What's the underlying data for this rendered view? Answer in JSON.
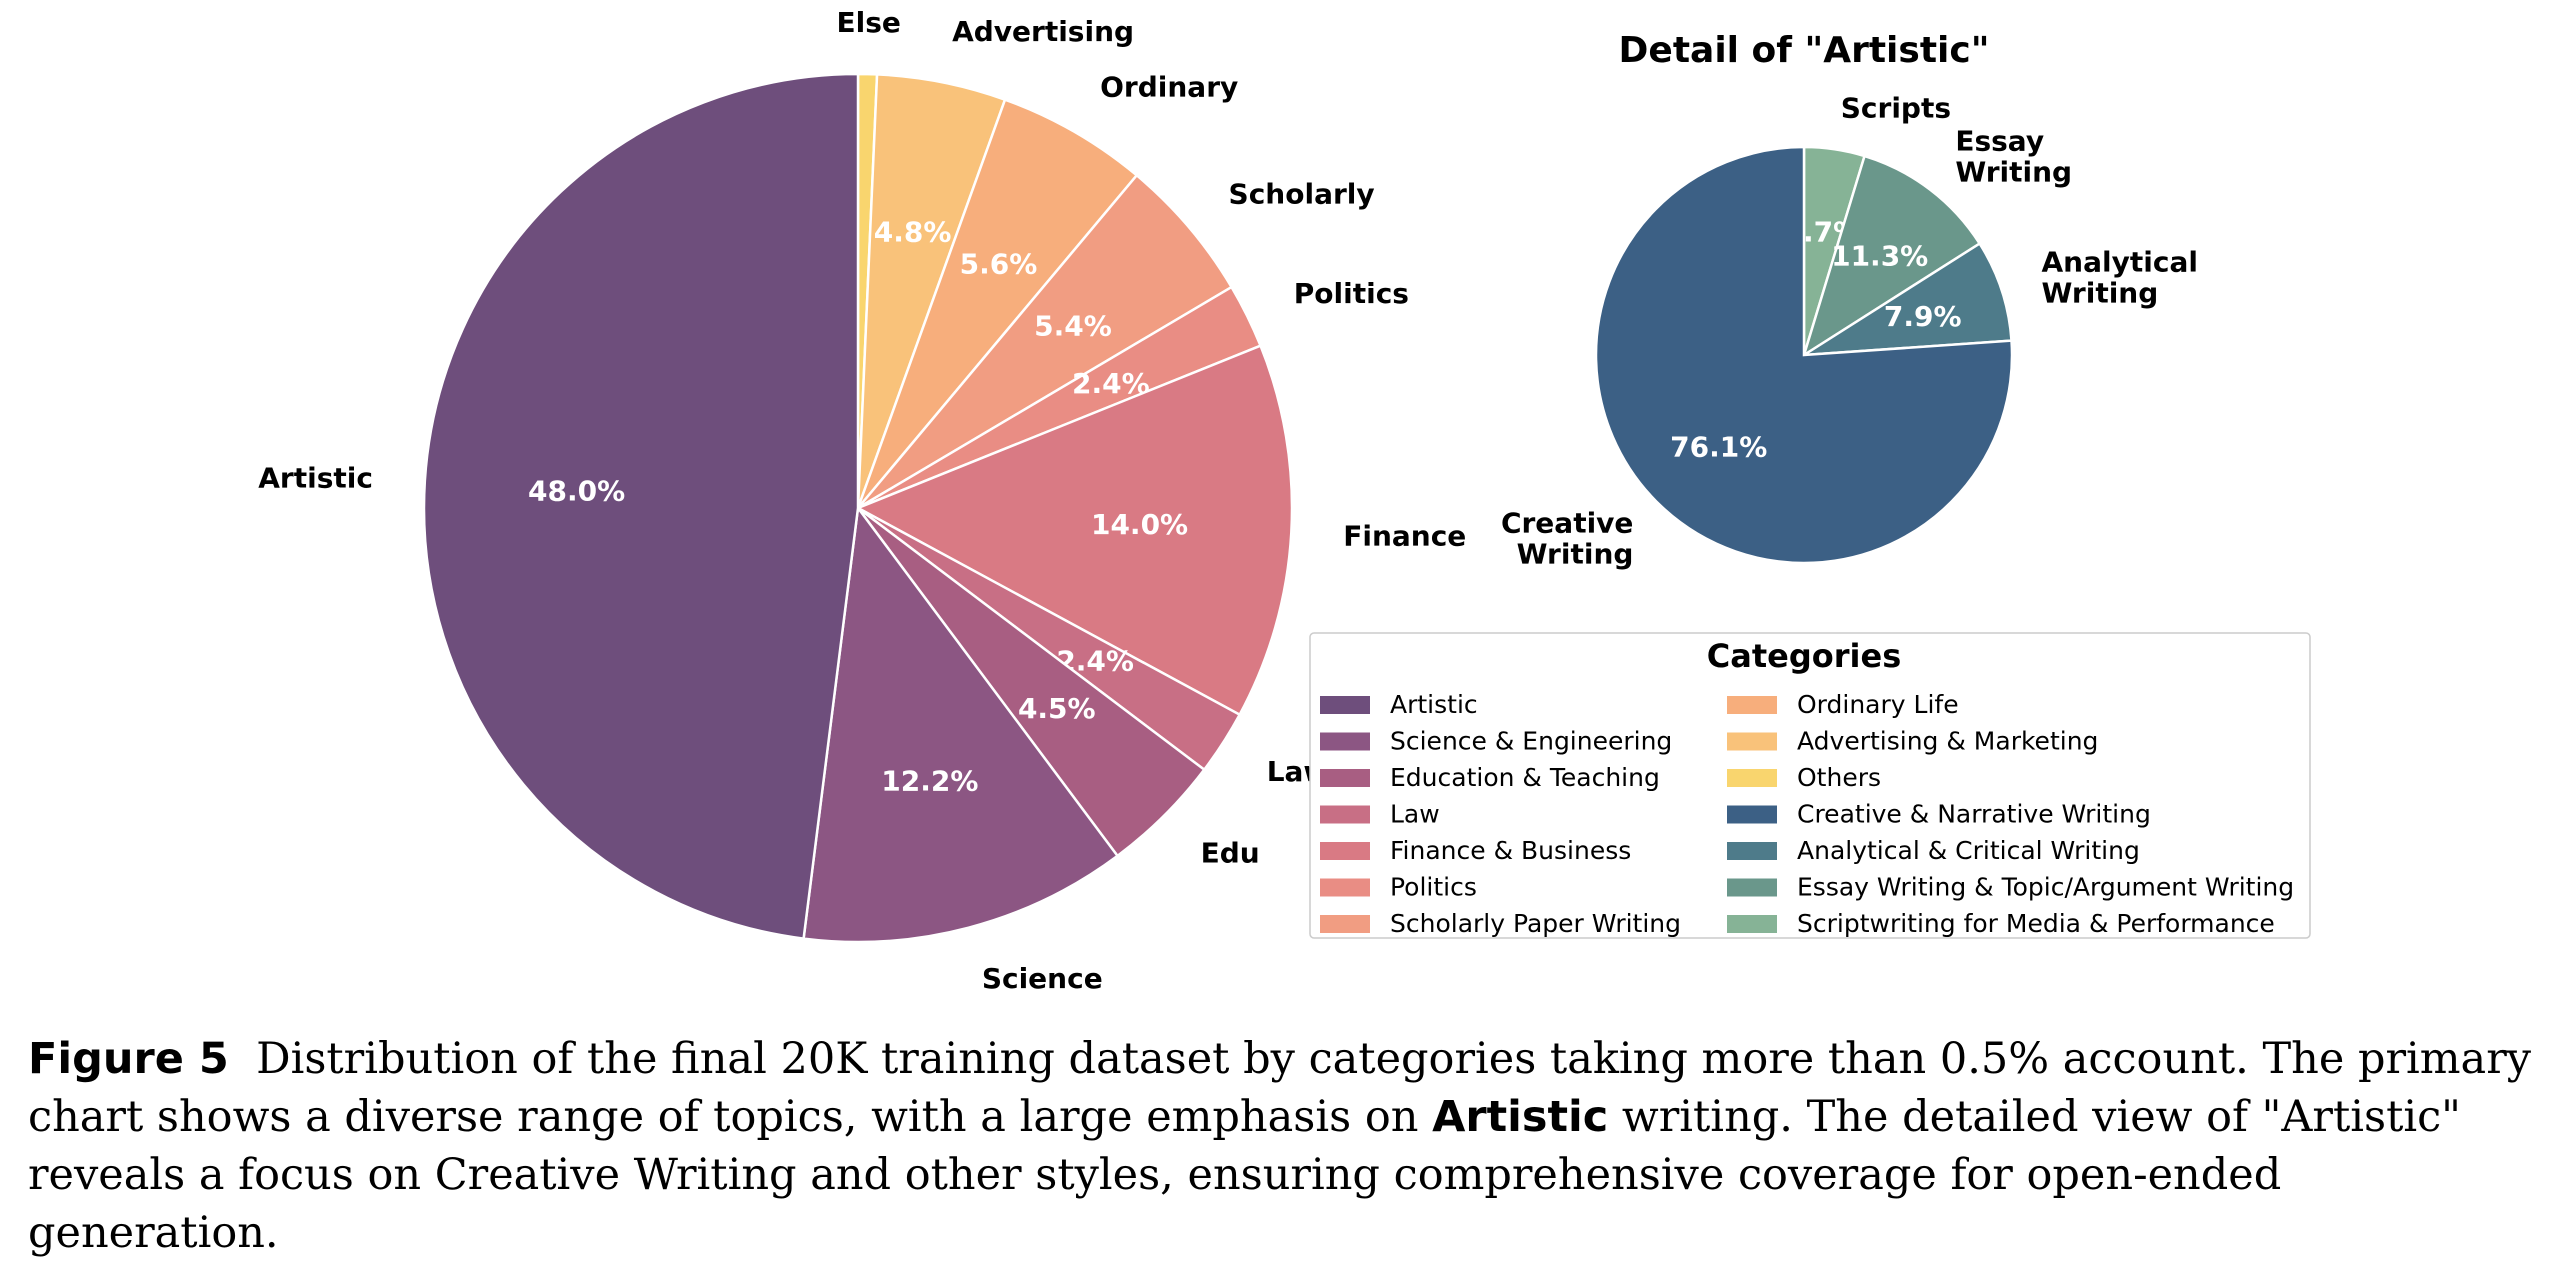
{
  "chart_data": [
    {
      "type": "pie",
      "title": "",
      "start_angle_deg": 90,
      "direction": "clockwise",
      "slices": [
        {
          "label": "Else",
          "value": 0.7,
          "pct_label": "",
          "color": "#F9D56E"
        },
        {
          "label": "Advertising",
          "value": 4.8,
          "pct_label": "4.8%",
          "color": "#F9C27A"
        },
        {
          "label": "Ordinary",
          "value": 5.6,
          "pct_label": "5.6%",
          "color": "#F7AE7C"
        },
        {
          "label": "Scholarly",
          "value": 5.4,
          "pct_label": "5.4%",
          "color": "#F19D82"
        },
        {
          "label": "Politics",
          "value": 2.4,
          "pct_label": "2.4%",
          "color": "#E98D84"
        },
        {
          "label": "Finance",
          "value": 14.0,
          "pct_label": "14.0%",
          "color": "#D97A84"
        },
        {
          "label": "Law",
          "value": 2.4,
          "pct_label": "2.4%",
          "color": "#C86F85"
        },
        {
          "label": "Edu",
          "value": 4.5,
          "pct_label": "4.5%",
          "color": "#A85E82"
        },
        {
          "label": "Science",
          "value": 12.2,
          "pct_label": "12.2%",
          "color": "#8C5683"
        },
        {
          "label": "Artistic",
          "value": 48.0,
          "pct_label": "48.0%",
          "color": "#6E4E7C"
        }
      ]
    },
    {
      "type": "pie",
      "title": "Detail of \"Artistic\"",
      "start_angle_deg": 90,
      "direction": "clockwise",
      "slices": [
        {
          "label": "Scripts",
          "value": 4.7,
          "pct_label": "4.7%",
          "color": "#86B396"
        },
        {
          "label": "Essay\nWriting",
          "value": 11.3,
          "pct_label": "11.3%",
          "color": "#6A978B"
        },
        {
          "label": "Analytical\nWriting",
          "value": 7.9,
          "pct_label": "7.9%",
          "color": "#4E7B8A"
        },
        {
          "label": "Creative\nWriting",
          "value": 76.1,
          "pct_label": "76.1%",
          "color": "#3C6085"
        }
      ]
    }
  ],
  "legend": {
    "title": "Categories",
    "entries": [
      {
        "label": "Artistic",
        "color": "#6E4E7C"
      },
      {
        "label": "Science & Engineering",
        "color": "#8C5683"
      },
      {
        "label": "Education & Teaching",
        "color": "#A85E82"
      },
      {
        "label": "Law",
        "color": "#C86F85"
      },
      {
        "label": "Finance & Business",
        "color": "#D97A84"
      },
      {
        "label": "Politics",
        "color": "#E98D84"
      },
      {
        "label": "Scholarly Paper Writing",
        "color": "#F19D82"
      },
      {
        "label": "Ordinary Life",
        "color": "#F7AE7C"
      },
      {
        "label": "Advertising & Marketing",
        "color": "#F9C27A"
      },
      {
        "label": "Others",
        "color": "#F9D56E"
      },
      {
        "label": "Creative & Narrative Writing",
        "color": "#3C6085"
      },
      {
        "label": "Analytical & Critical Writing",
        "color": "#4E7B8A"
      },
      {
        "label": "Essay Writing & Topic/Argument Writing",
        "color": "#6A978B"
      },
      {
        "label": "Scriptwriting for Media & Performance",
        "color": "#86B396"
      }
    ]
  },
  "caption": {
    "figure_label": "Figure 5",
    "text_1": "Distribution of the final 20K training dataset by categories taking more than 0.5% account. The primary chart shows a diverse range of topics, with a large emphasis on ",
    "bold_word": "Artistic",
    "text_2": " writing. The detailed view of \"Artistic\" reveals a focus on Creative Writing and other styles, ensuring comprehensive coverage for open-ended generation."
  }
}
